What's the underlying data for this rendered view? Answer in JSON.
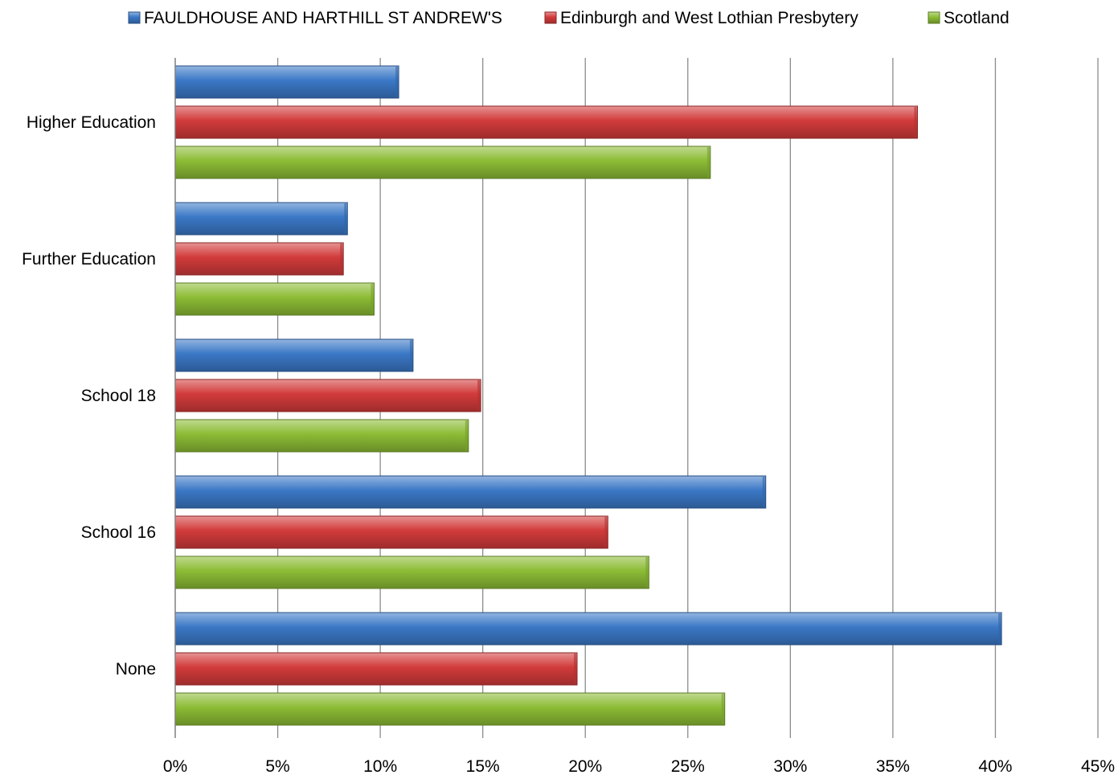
{
  "chart_data": {
    "type": "bar",
    "orientation": "horizontal",
    "categories": [
      "Higher Education",
      "Further Education",
      "School 18",
      "School 16",
      "None"
    ],
    "series": [
      {
        "name": "FAULDHOUSE AND HARTHILL ST ANDREW'S",
        "color": "#3b78c6",
        "values": [
          10.9,
          8.4,
          11.6,
          28.8,
          40.3
        ]
      },
      {
        "name": "Edinburgh and West Lothian Presbytery",
        "color": "#d23b3b",
        "values": [
          36.2,
          8.2,
          14.9,
          21.1,
          19.6
        ]
      },
      {
        "name": "Scotland",
        "color": "#8cbc35",
        "values": [
          26.1,
          9.7,
          14.3,
          23.1,
          26.8
        ]
      }
    ],
    "xlim": [
      0,
      45
    ],
    "x_ticks": [
      0,
      5,
      10,
      15,
      20,
      25,
      30,
      35,
      40,
      45
    ],
    "x_tick_labels": [
      "0%",
      "5%",
      "10%",
      "15%",
      "20%",
      "25%",
      "30%",
      "35%",
      "40%",
      "45%"
    ],
    "title": "",
    "xlabel": "",
    "ylabel": "",
    "grid": "vertical",
    "legend_position": "top"
  }
}
